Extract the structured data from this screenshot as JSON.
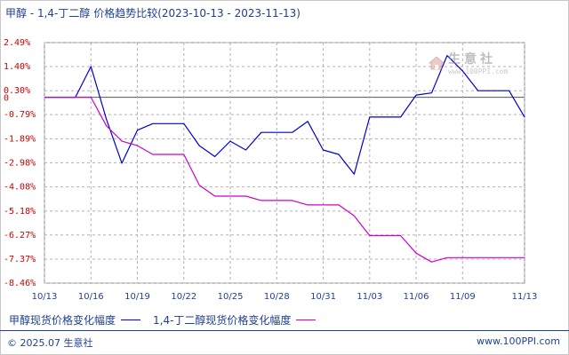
{
  "header": {
    "title": "甲醇 - 1,4-丁二醇 价格趋势比较(2023-10-13 - 2023-11-13)"
  },
  "watermark": {
    "name": "生意社",
    "url": "www.100PPI.com",
    "icon": "house-logo-icon"
  },
  "footer": {
    "left": "© 2025.07 生意社",
    "right": "www.100PPI.com"
  },
  "colors": {
    "series_1": "#0000cc",
    "series_2": "#cc00cc",
    "tick_y": "#cc0000",
    "tick_x": "#1f3f8f",
    "zero_line": "#555555",
    "grid": "#b0b0b0"
  },
  "chart_data": {
    "type": "line",
    "title": "甲醇 - 1,4-丁二醇 价格趋势比较(2023-10-13 - 2023-11-13)",
    "xlabel": "",
    "ylabel": "",
    "x": [
      "10/13",
      "10/14",
      "10/15",
      "10/16",
      "10/17",
      "10/18",
      "10/19",
      "10/20",
      "10/21",
      "10/22",
      "10/23",
      "10/24",
      "10/25",
      "10/26",
      "10/27",
      "10/28",
      "10/29",
      "10/30",
      "10/31",
      "11/01",
      "11/02",
      "11/03",
      "11/04",
      "11/05",
      "11/06",
      "11/07",
      "11/08",
      "11/09",
      "11/10",
      "11/11",
      "11/12",
      "11/13"
    ],
    "x_tick_labels": [
      "10/13",
      "10/16",
      "10/19",
      "10/22",
      "10/25",
      "10/28",
      "10/31",
      "11/03",
      "11/06",
      "11/09",
      "11/13"
    ],
    "y_tick_labels": [
      "2.49%",
      "1.40%",
      "0.30%",
      "-0.79%",
      "-1.89%",
      "-2.98%",
      "-4.08%",
      "-5.18%",
      "-6.27%",
      "-7.37%",
      "-8.46%"
    ],
    "y_tick_values": [
      2.49,
      1.4,
      0.3,
      -0.79,
      -1.89,
      -2.98,
      -4.08,
      -5.18,
      -6.27,
      -7.37,
      -8.46
    ],
    "zero_label": "0",
    "ylim": [
      -8.46,
      2.49
    ],
    "grid": true,
    "legend_position": "bottom",
    "series": [
      {
        "name": "甲醇现货价格变化幅度",
        "values": [
          0,
          0,
          0,
          1.4,
          -1.0,
          -3.0,
          -1.5,
          -1.2,
          -1.2,
          -1.2,
          -2.2,
          -2.7,
          -2.0,
          -2.4,
          -1.6,
          -1.6,
          -1.6,
          -1.1,
          -2.4,
          -2.6,
          -3.5,
          -0.9,
          -0.9,
          -0.9,
          0.1,
          0.2,
          1.9,
          1.2,
          0.3,
          0.3,
          0.3,
          -0.9
        ]
      },
      {
        "name": "1,4-丁二醇现货价格变化幅度",
        "values": [
          0,
          0,
          0,
          0,
          -1.3,
          -2.0,
          -2.2,
          -2.6,
          -2.6,
          -2.6,
          -4.0,
          -4.5,
          -4.5,
          -4.5,
          -4.7,
          -4.7,
          -4.7,
          -4.9,
          -4.9,
          -4.9,
          -5.4,
          -6.3,
          -6.3,
          -6.3,
          -7.1,
          -7.5,
          -7.3,
          -7.3,
          -7.3,
          -7.3,
          -7.3,
          -7.3
        ]
      }
    ]
  }
}
